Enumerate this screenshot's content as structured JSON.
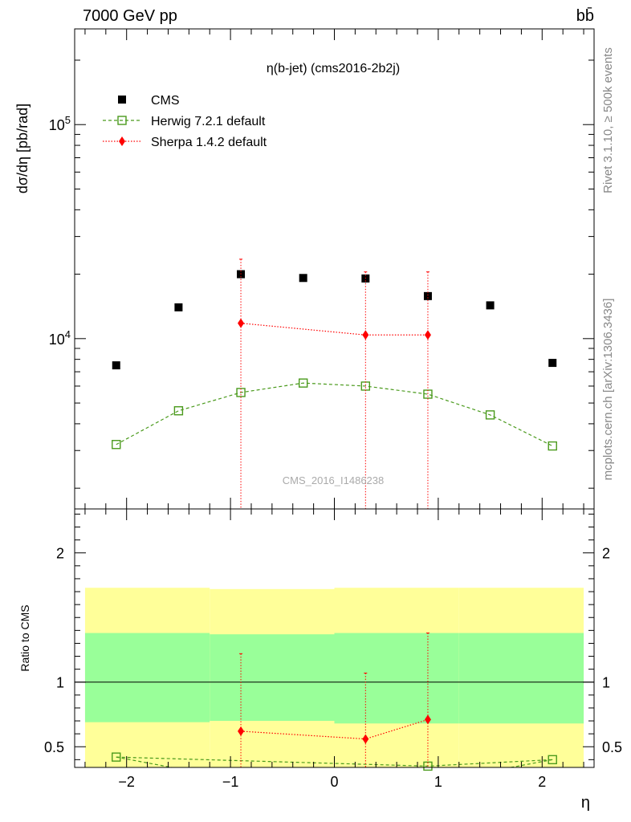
{
  "header": {
    "energy_label": "7000 GeV pp",
    "process_label": "bb̄"
  },
  "side_labels": {
    "rivet": "Rivet 3.1.10, ≥ 500k events",
    "mcplots": "mcplots.cern.ch [arXiv:1306.3436]"
  },
  "watermark": "CMS_2016_I1486238",
  "chart_data": [
    {
      "type": "scatter",
      "panel": "main",
      "title": "η(b-jet) (cms2016-2b2j)",
      "ylabel": "dσ/dη [pb/rad]",
      "xlabel": "",
      "yscale": "log",
      "xlim": [
        -2.5,
        2.5
      ],
      "ylim": [
        1600,
        280000
      ],
      "y_ticks": [
        {
          "value": 10000,
          "label": "10^4"
        },
        {
          "value": 100000,
          "label": "10^5"
        }
      ],
      "legend_position": "top-left",
      "series": [
        {
          "name": "CMS",
          "marker": "filled-square",
          "color": "#000000",
          "x": [
            -2.1,
            -1.5,
            -0.9,
            -0.3,
            0.3,
            0.9,
            1.5,
            2.1
          ],
          "y": [
            7500,
            14000,
            20000,
            19200,
            19100,
            15800,
            14300,
            7700
          ]
        },
        {
          "name": "Herwig 7.2.1 default",
          "marker": "open-square",
          "line": "dashed",
          "color": "#4a9a1c",
          "x": [
            -2.1,
            -1.5,
            -0.9,
            -0.3,
            0.3,
            0.9,
            1.5,
            2.1
          ],
          "y": [
            3200,
            4600,
            5600,
            6200,
            6000,
            5500,
            4400,
            3150
          ]
        },
        {
          "name": "Sherpa 1.4.2 default",
          "marker": "filled-diamond",
          "line": "dotted",
          "color": "#ff0000",
          "x": [
            -0.9,
            0.3,
            0.9
          ],
          "y": [
            11800,
            10400,
            10400
          ],
          "err_up": [
            23500,
            20500,
            20500
          ],
          "err_down": [
            1600,
            1600,
            1600
          ]
        }
      ]
    },
    {
      "type": "scatter",
      "panel": "ratio",
      "ylabel": "Ratio to CMS",
      "xlabel": "η",
      "xlim": [
        -2.5,
        2.5
      ],
      "ylim": [
        0.34,
        2.34
      ],
      "x_ticks": [
        -2,
        -1,
        0,
        1,
        2
      ],
      "x_tick_labels": [
        "−2",
        "−1",
        "0",
        "1",
        "2"
      ],
      "y_ticks": [
        0.5,
        1,
        2
      ],
      "y_tick_labels": [
        "0.5",
        "1",
        "2"
      ],
      "reference_line": 1,
      "bands": [
        {
          "x0": -2.4,
          "x1": -1.2,
          "stat_lo": 0.69,
          "stat_hi": 1.38,
          "tot_lo": 0.34,
          "tot_hi": 1.73
        },
        {
          "x0": -1.2,
          "x1": 0.0,
          "stat_lo": 0.7,
          "stat_hi": 1.37,
          "tot_lo": 0.34,
          "tot_hi": 1.72
        },
        {
          "x0": 0.0,
          "x1": 1.2,
          "stat_lo": 0.68,
          "stat_hi": 1.38,
          "tot_lo": 0.34,
          "tot_hi": 1.73
        },
        {
          "x0": 1.2,
          "x1": 2.4,
          "stat_lo": 0.68,
          "stat_hi": 1.38,
          "tot_lo": 0.34,
          "tot_hi": 1.73
        }
      ],
      "band_colors": {
        "outer": "#ffff99",
        "inner": "#99ff99"
      },
      "series": [
        {
          "name": "Herwig 7.2.1 default",
          "marker": "open-square",
          "line": "dashed",
          "color": "#4a9a1c",
          "x": [
            -2.1,
            -1.5,
            -0.9,
            -0.3,
            0.3,
            0.9,
            1.5,
            2.1
          ],
          "y": [
            0.42,
            0.33,
            0.28,
            0.32,
            0.31,
            0.35,
            0.31,
            0.4
          ]
        },
        {
          "name": "Sherpa 1.4.2 default",
          "marker": "filled-diamond",
          "line": "dotted",
          "color": "#ff0000",
          "x": [
            -0.9,
            0.3,
            0.9
          ],
          "y": [
            0.62,
            0.56,
            0.71
          ],
          "err_up": [
            1.22,
            1.07,
            1.38
          ],
          "err_down": [
            0.34,
            0.34,
            0.34
          ]
        }
      ]
    }
  ]
}
